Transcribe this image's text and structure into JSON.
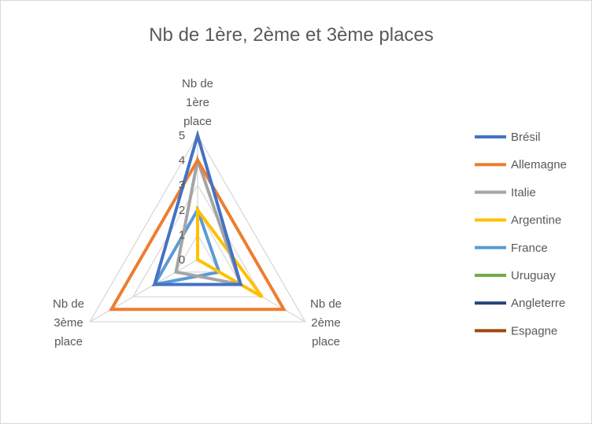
{
  "chart_data": {
    "type": "radar",
    "title": "Nb de 1ère, 2ème et 3ème places",
    "axes": [
      [
        "Nb de",
        "1ère",
        "place"
      ],
      [
        "Nb de",
        "2ème",
        "place"
      ],
      [
        "Nb de",
        "3ème",
        "place"
      ]
    ],
    "ticks": [
      "0",
      "1",
      "2",
      "3",
      "4",
      "5"
    ],
    "rmin": 0,
    "rmax": 5,
    "grid": true,
    "legend_position": "right",
    "series": [
      {
        "name": "Brésil",
        "color": "#4472C4",
        "values": [
          5,
          2,
          2
        ]
      },
      {
        "name": "Allemagne",
        "color": "#ED7D31",
        "values": [
          4,
          4,
          4
        ]
      },
      {
        "name": "Italie",
        "color": "#A5A5A5",
        "values": [
          4,
          2,
          1
        ]
      },
      {
        "name": "Argentine",
        "color": "#FFC000",
        "values": [
          2,
          3,
          0
        ]
      },
      {
        "name": "France",
        "color": "#5B9BD5",
        "values": [
          2,
          1,
          2
        ]
      },
      {
        "name": "Uruguay",
        "color": "#70AD47",
        "values": [
          2,
          0,
          0
        ]
      },
      {
        "name": "Angleterre",
        "color": "#264478",
        "values": [
          1,
          0,
          0
        ]
      },
      {
        "name": "Espagne",
        "color": "#9E480E",
        "values": [
          1,
          0,
          0
        ]
      }
    ]
  }
}
